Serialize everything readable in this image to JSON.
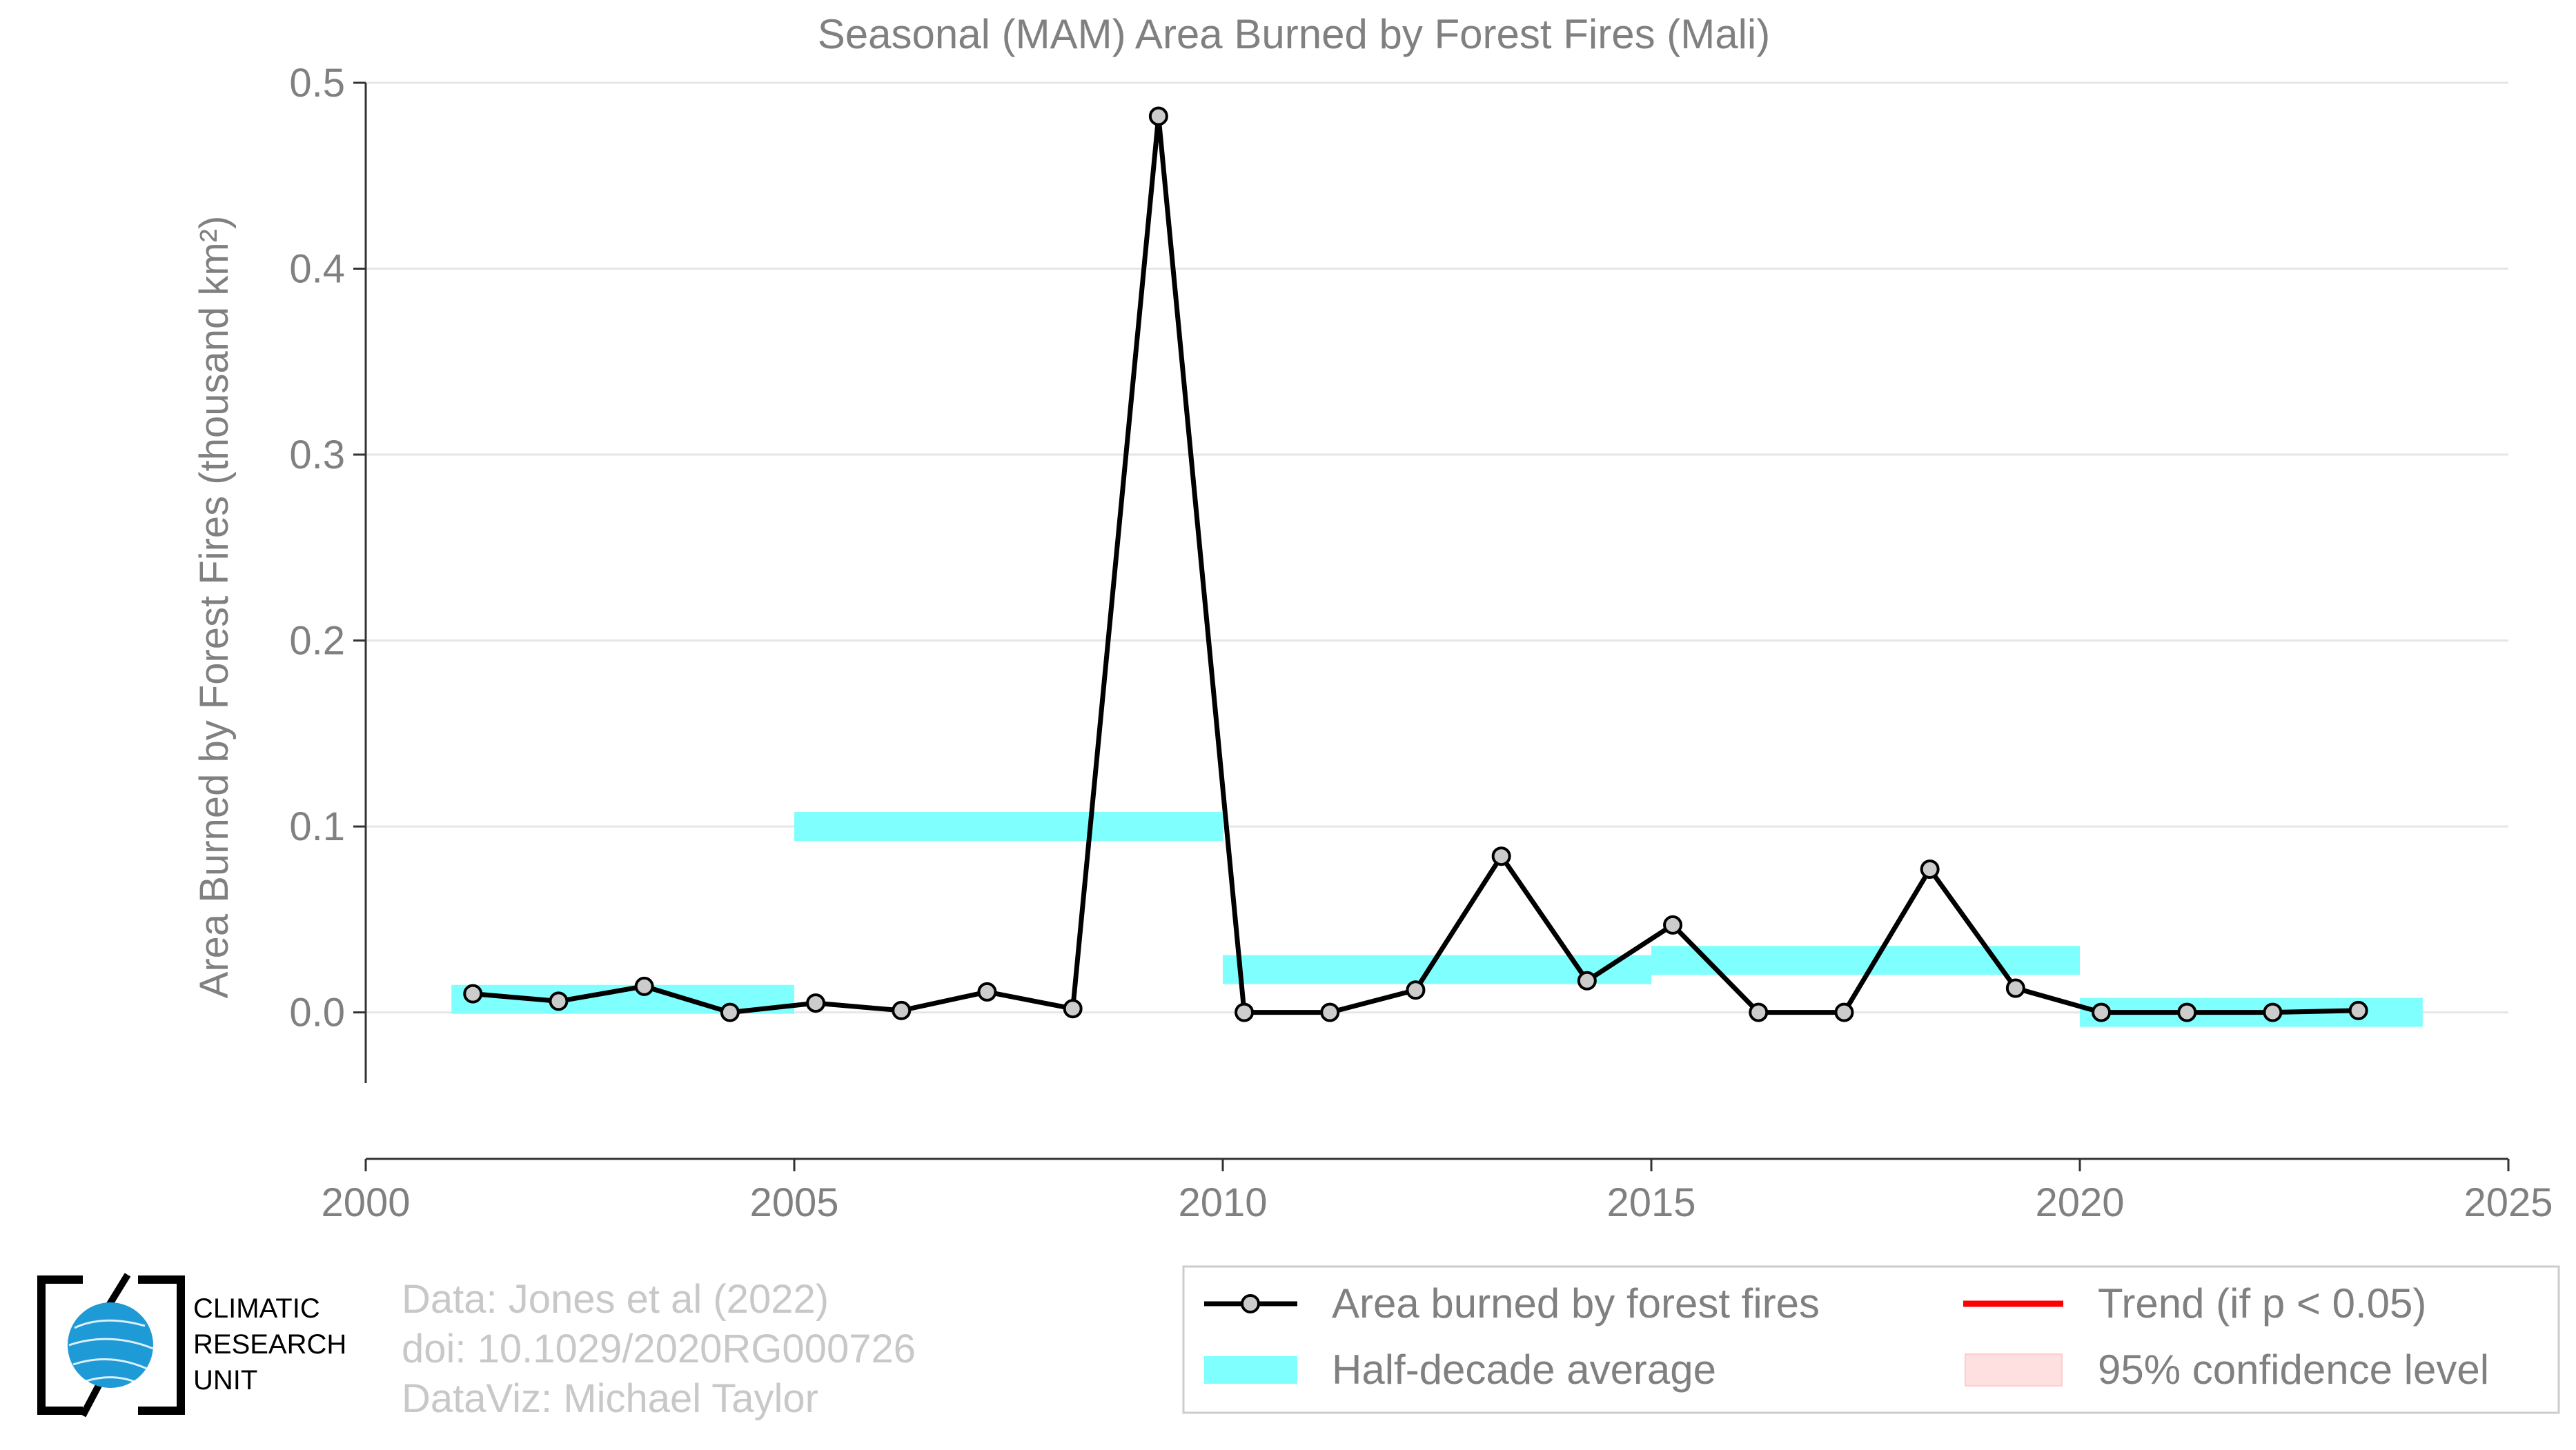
{
  "chart_data": {
    "type": "line",
    "title": "Seasonal (MAM) Area Burned by Forest Fires (Mali)",
    "xlabel": "",
    "ylabel": "Area Burned by Forest Fires (thousand km²)",
    "xlim": [
      2000,
      2025
    ],
    "ylim": [
      -0.038,
      0.5
    ],
    "x_ticks": [
      2000,
      2005,
      2010,
      2015,
      2020,
      2025
    ],
    "y_ticks": [
      0.0,
      0.1,
      0.2,
      0.3,
      0.4,
      0.5
    ],
    "y_tick_labels": [
      "0.0",
      "0.1",
      "0.2",
      "0.3",
      "0.4",
      "0.5"
    ],
    "grid": "horizontal",
    "legend_position": "bottom-right",
    "series": [
      {
        "name": "Area burned by forest fires",
        "type": "line+marker",
        "color": "#000000",
        "marker_fill": "#cccccc",
        "x": [
          2001,
          2002,
          2003,
          2004,
          2005,
          2006,
          2007,
          2008,
          2009,
          2010,
          2011,
          2012,
          2013,
          2014,
          2015,
          2016,
          2017,
          2018,
          2019,
          2020,
          2021,
          2022,
          2023
        ],
        "values": [
          0.01,
          0.006,
          0.014,
          0.0,
          0.005,
          0.001,
          0.011,
          0.002,
          0.482,
          0.0,
          0.0,
          0.012,
          0.084,
          0.017,
          0.047,
          0.0,
          0.0,
          0.077,
          0.013,
          0.0,
          0.0,
          0.0,
          0.001
        ]
      },
      {
        "name": "Half-decade average",
        "type": "step-band",
        "color": "#80ffff",
        "segments": [
          {
            "x_start": 2001,
            "x_end": 2005,
            "value": 0.007
          },
          {
            "x_start": 2005,
            "x_end": 2010,
            "value": 0.1
          },
          {
            "x_start": 2010,
            "x_end": 2015,
            "value": 0.023
          },
          {
            "x_start": 2015,
            "x_end": 2020,
            "value": 0.028
          },
          {
            "x_start": 2020,
            "x_end": 2024,
            "value": 0.0
          }
        ]
      },
      {
        "name": "Trend (if p < 0.05)",
        "type": "line",
        "color": "#ff0000",
        "values": []
      },
      {
        "name": "95% confidence level",
        "type": "band",
        "color": "#ffe0e0",
        "values": []
      }
    ]
  },
  "legend": {
    "items": [
      {
        "label": "Area burned by forest fires"
      },
      {
        "label": "Trend (if p < 0.05)"
      },
      {
        "label": "Half-decade average"
      },
      {
        "label": "95% confidence level"
      }
    ]
  },
  "credits": {
    "line1": "Data: Jones et al (2022)",
    "line2": "doi: 10.1029/2020RG000726",
    "line3": "DataViz: Michael Taylor"
  },
  "logo": {
    "line1": "CLIMATIC",
    "line2": "RESEARCH",
    "line3": "UNIT",
    "globe_color": "#1e9ad6"
  }
}
